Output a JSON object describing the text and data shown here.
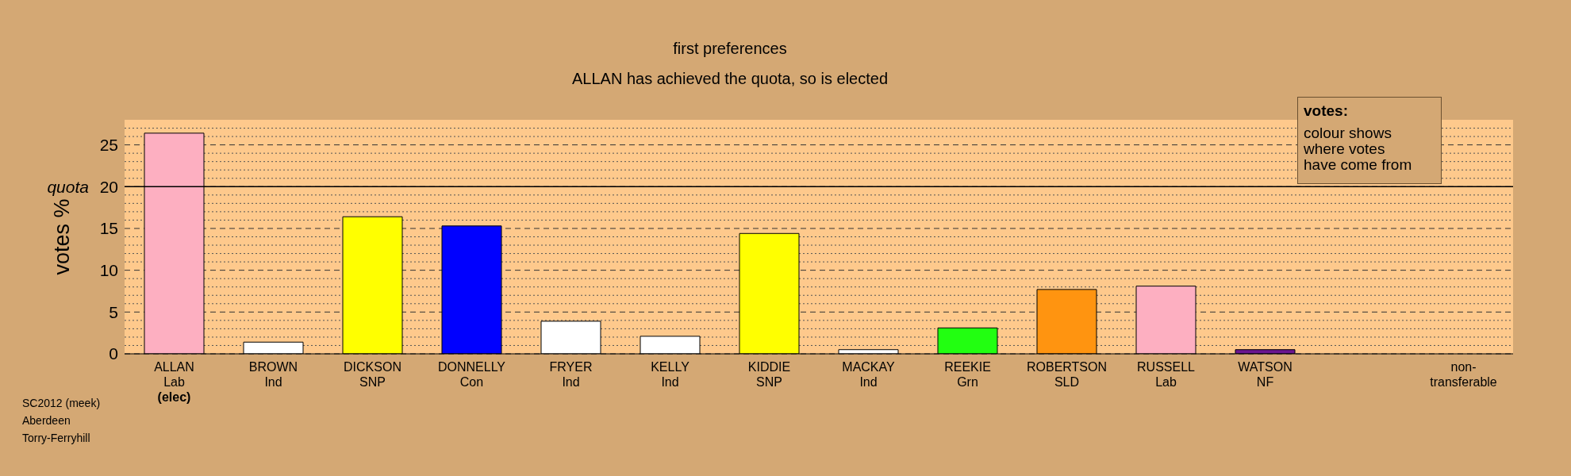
{
  "chart_data": {
    "type": "bar",
    "title": "first preferences",
    "subtitle": "ALLAN has achieved the quota, so is elected",
    "ylabel": "votes %",
    "categories": [
      "ALLAN\nLab\n(elec)",
      "BROWN\nInd",
      "DICKSON\nSNP",
      "DONNELLY\nCon",
      "FRYER\nInd",
      "KELLY\nInd",
      "KIDDIE\nSNP",
      "MACKAY\nInd",
      "REEKIE\nGrn",
      "ROBERTSON\nSLD",
      "RUSSELL\nLab",
      "WATSON\nNF",
      null,
      "non-\ntransferable"
    ],
    "values": [
      26.4,
      1.4,
      16.4,
      15.3,
      3.9,
      2.1,
      14.4,
      0.5,
      3.1,
      7.7,
      8.1,
      0.5,
      null,
      0
    ],
    "colors": [
      "#fdafc1",
      "#ffffff",
      "#ffff00",
      "#0000ff",
      "#ffffff",
      "#ffffff",
      "#ffff00",
      "#ffffff",
      "#22ff11",
      "#ff9410",
      "#fdafc1",
      "#6b1790",
      null,
      "#ffffff"
    ],
    "ylim": [
      0,
      28
    ],
    "yticks": [
      0,
      {
        "value": 1,
        "label": null
      },
      {
        "value": 2,
        "label": null
      },
      {
        "value": 3,
        "label": null
      },
      {
        "value": 4,
        "label": null
      },
      5,
      {
        "value": 6,
        "label": null
      },
      {
        "value": 7,
        "label": null
      },
      {
        "value": 8,
        "label": null
      },
      {
        "value": 9,
        "label": null
      },
      10,
      {
        "value": 11,
        "label": null
      },
      {
        "value": 12,
        "label": null
      },
      {
        "value": 13,
        "label": null
      },
      {
        "value": 14,
        "label": null
      },
      15,
      {
        "value": 16,
        "label": null
      },
      {
        "value": 17,
        "label": null
      },
      {
        "value": 18,
        "label": null
      },
      {
        "value": 19,
        "label": null
      },
      20,
      {
        "value": 21,
        "label": null
      },
      {
        "value": 22,
        "label": null
      },
      {
        "value": 23,
        "label": null
      },
      {
        "value": 24,
        "label": null
      },
      25,
      {
        "value": 26,
        "label": null
      },
      {
        "value": 27,
        "label": null
      }
    ],
    "grid": "y",
    "ref_lines": [
      {
        "axis": "y",
        "value": 20,
        "label": "quota",
        "color": "#000000",
        "line_style": "solid"
      }
    ],
    "annotations": [
      "votes:",
      "colour shows\nwhere votes\nhave come from",
      "SC2012 (meek)\nAberdeen\nTorry-Ferryhill"
    ]
  }
}
